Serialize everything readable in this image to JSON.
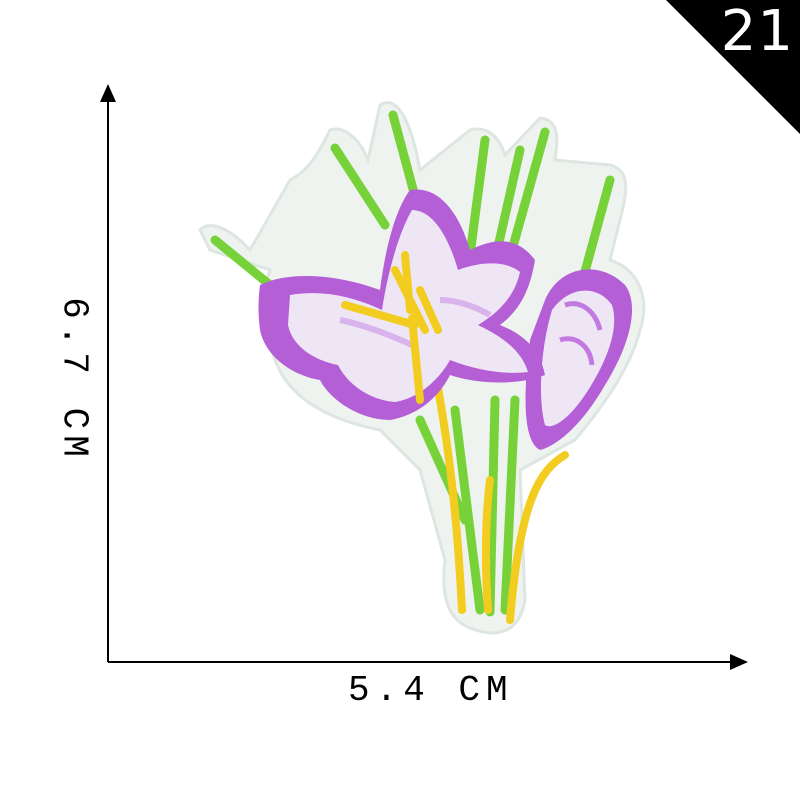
{
  "badge": {
    "number": "21",
    "background": "#000000",
    "text_color": "#ffffff"
  },
  "dimensions": {
    "width_label": "5.4 CM",
    "height_label": "6.7 CM"
  },
  "patch": {
    "subject": "embroidered crocus flower patch",
    "colors": {
      "petal_edge": "#b45fd6",
      "petal_inner": "#eee6f5",
      "stamen": "#f2cc1e",
      "stem": "#77d23a",
      "backing": "#eef3f0"
    }
  }
}
